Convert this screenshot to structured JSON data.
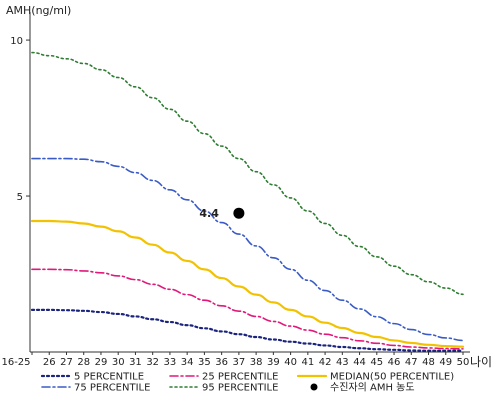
{
  "chart_data": {
    "type": "line",
    "ylabel": "AMH(ng/ml)",
    "xlabel": "나이",
    "ylim": [
      0,
      10.9
    ],
    "y_ticks": [
      10,
      5
    ],
    "x": [
      "16-25",
      "26",
      "27",
      "28",
      "29",
      "30",
      "31",
      "32",
      "33",
      "34",
      "35",
      "36",
      "37",
      "38",
      "39",
      "40",
      "41",
      "42",
      "43",
      "44",
      "45",
      "46",
      "47",
      "48",
      "49",
      "50"
    ],
    "series": [
      {
        "name": "5 PERCENTILE",
        "color": "#1a237e",
        "dash": "2,3",
        "width": 2.2,
        "values": [
          1.35,
          1.35,
          1.34,
          1.32,
          1.28,
          1.22,
          1.14,
          1.05,
          0.96,
          0.86,
          0.76,
          0.66,
          0.57,
          0.48,
          0.4,
          0.33,
          0.27,
          0.21,
          0.16,
          0.12,
          0.09,
          0.07,
          0.05,
          0.04,
          0.04,
          0.04
        ]
      },
      {
        "name": "25 PERCENTILE",
        "color": "#e0197b",
        "dash": "8,3,2,3",
        "width": 1.6,
        "values": [
          2.65,
          2.65,
          2.64,
          2.6,
          2.54,
          2.44,
          2.32,
          2.17,
          2.01,
          1.84,
          1.66,
          1.48,
          1.31,
          1.14,
          0.98,
          0.83,
          0.7,
          0.57,
          0.46,
          0.36,
          0.28,
          0.21,
          0.16,
          0.13,
          0.11,
          0.1
        ]
      },
      {
        "name": "MEDIAN(50 PERCENTILE)",
        "color": "#f2c200",
        "dash": "",
        "width": 2.2,
        "values": [
          4.2,
          4.2,
          4.18,
          4.12,
          4.02,
          3.87,
          3.67,
          3.44,
          3.19,
          2.92,
          2.65,
          2.37,
          2.1,
          1.84,
          1.59,
          1.35,
          1.14,
          0.94,
          0.77,
          0.61,
          0.48,
          0.37,
          0.29,
          0.23,
          0.19,
          0.17
        ]
      },
      {
        "name": "75 PERCENTILE",
        "color": "#3a5bc7",
        "dash": "8,3,2,3",
        "width": 1.6,
        "values": [
          6.2,
          6.2,
          6.2,
          6.18,
          6.1,
          5.95,
          5.75,
          5.5,
          5.2,
          4.88,
          4.52,
          4.15,
          3.78,
          3.4,
          3.02,
          2.65,
          2.3,
          1.97,
          1.66,
          1.38,
          1.13,
          0.91,
          0.72,
          0.56,
          0.45,
          0.37
        ]
      },
      {
        "name": "95 PERCENTILE",
        "color": "#2e7d32",
        "dash": "2,3",
        "width": 1.6,
        "values": [
          9.6,
          9.5,
          9.4,
          9.25,
          9.05,
          8.8,
          8.5,
          8.15,
          7.78,
          7.4,
          7.0,
          6.6,
          6.2,
          5.78,
          5.36,
          4.94,
          4.52,
          4.12,
          3.74,
          3.38,
          3.05,
          2.75,
          2.48,
          2.25,
          2.05,
          1.85
        ]
      }
    ],
    "markers": [
      {
        "name": "수진자의 AMH 농도",
        "x": "37",
        "y": 4.45,
        "label": "4.4",
        "color": "#000000"
      }
    ],
    "grid": false,
    "legend": "bottom"
  }
}
